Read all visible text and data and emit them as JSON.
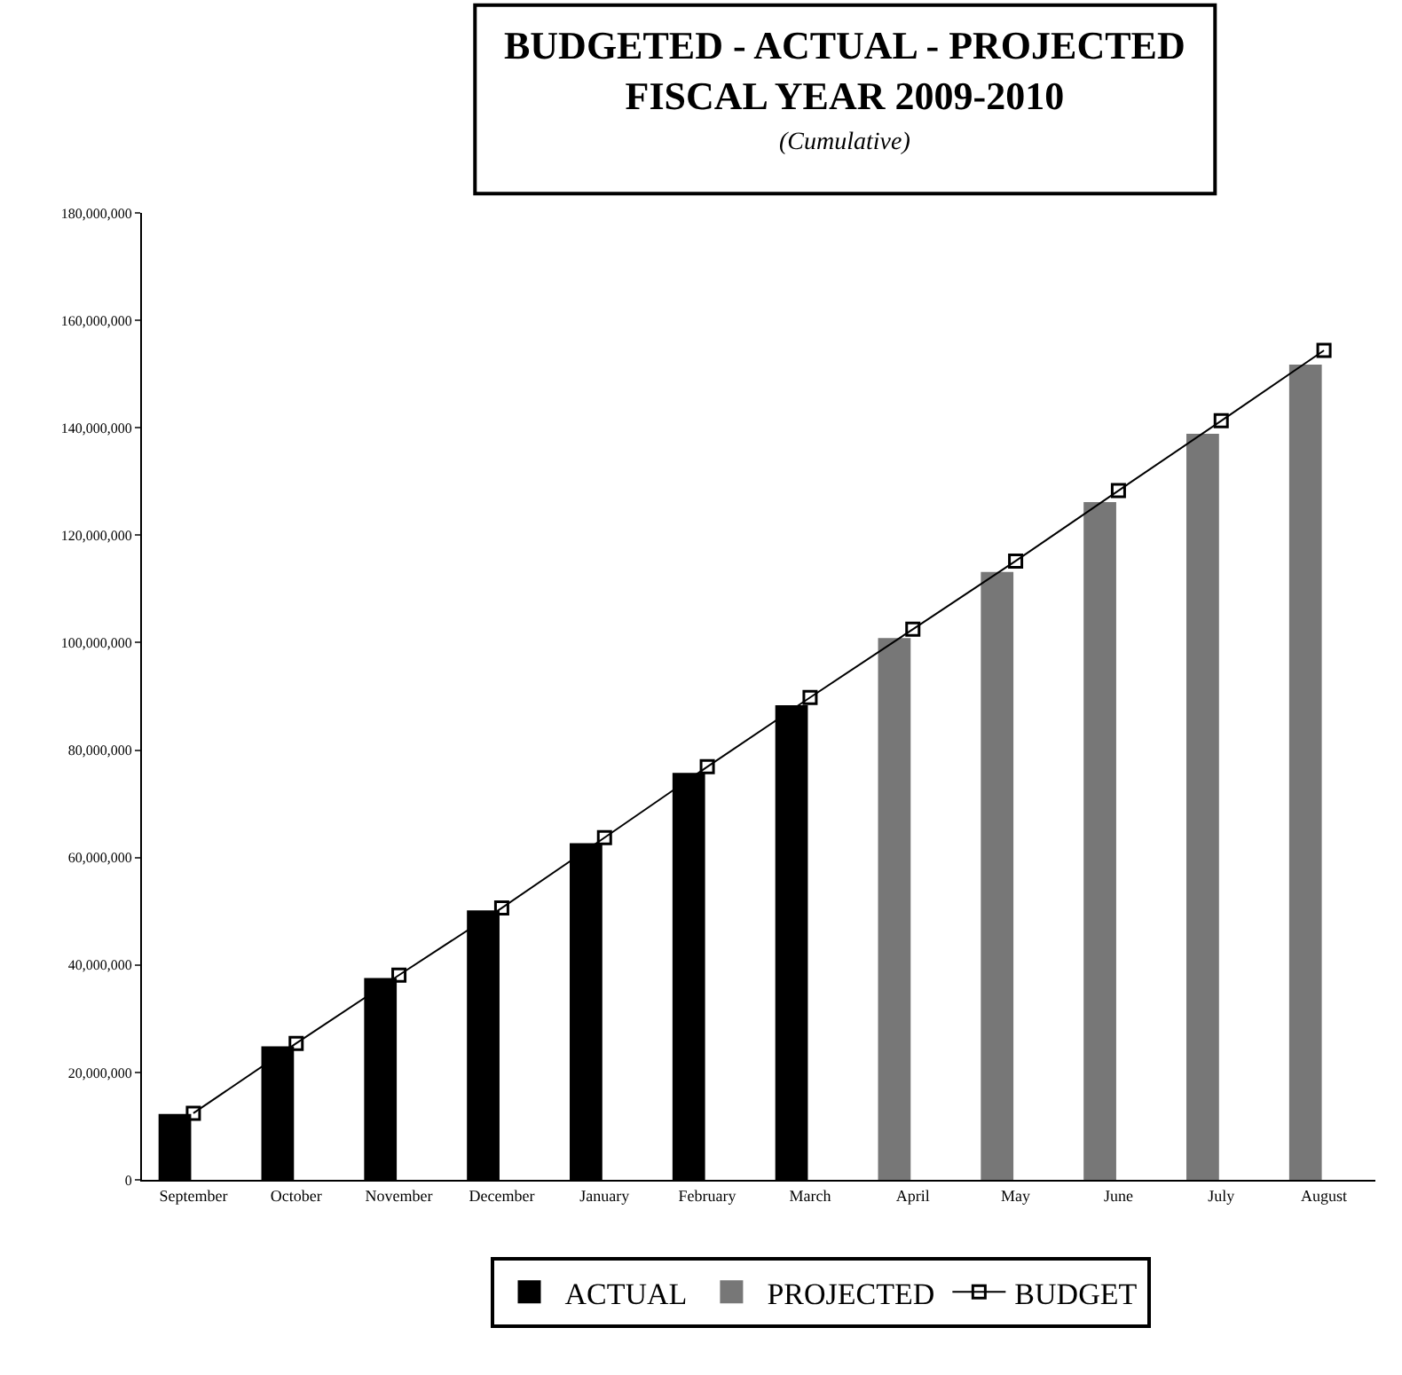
{
  "chart_data": {
    "type": "bar",
    "title": "BUDGETED - ACTUAL - PROJECTED\nFISCAL YEAR 2009-2010",
    "subtitle": "(Cumulative)",
    "categories": [
      "September",
      "October",
      "November",
      "December",
      "January",
      "February",
      "March",
      "April",
      "May",
      "June",
      "July",
      "August"
    ],
    "series": [
      {
        "name": "ACTUAL",
        "color": "#000000",
        "values": [
          12100000,
          24700000,
          37400000,
          50000000,
          62500000,
          75600000,
          88200000,
          null,
          null,
          null,
          null,
          null
        ]
      },
      {
        "name": "PROJECTED",
        "color": "#777777",
        "values": [
          null,
          null,
          null,
          null,
          null,
          null,
          null,
          100700000,
          113000000,
          126000000,
          138700000,
          151600000
        ]
      },
      {
        "name": "BUDGET",
        "type": "line",
        "color": "#000000",
        "marker": "square",
        "values": [
          12400000,
          25400000,
          38100000,
          50600000,
          63700000,
          76900000,
          89800000,
          102500000,
          115200000,
          128300000,
          141300000,
          154400000
        ]
      }
    ],
    "ylim": [
      0,
      180000000
    ],
    "yticks": [
      {
        "value": 0,
        "label": "0"
      },
      {
        "value": 20000000,
        "label": "20,000,000"
      },
      {
        "value": 40000000,
        "label": "40,000,000"
      },
      {
        "value": 60000000,
        "label": "60,000,000"
      },
      {
        "value": 80000000,
        "label": "80,000,000"
      },
      {
        "value": 100000000,
        "label": "100,000,000"
      },
      {
        "value": 120000000,
        "label": "120,000,000"
      },
      {
        "value": 140000000,
        "label": "140,000,000"
      },
      {
        "value": 160000000,
        "label": "160,000,000"
      },
      {
        "value": 180000000,
        "label": "180,000,000"
      }
    ],
    "legend": "bottom"
  }
}
